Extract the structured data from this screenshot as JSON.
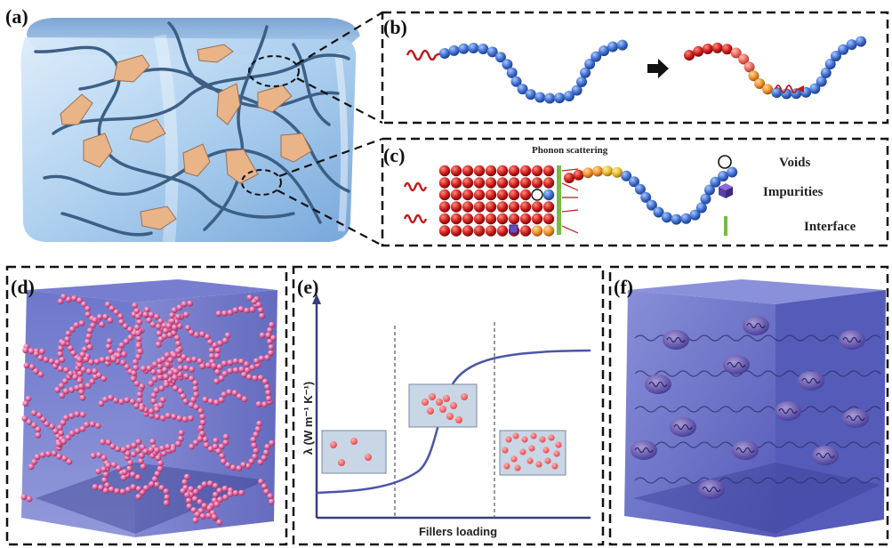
{
  "panels": {
    "a": {
      "label": "(a)"
    },
    "b": {
      "label": "(b)"
    },
    "c": {
      "label": "(c)",
      "annotation": "Phonon scattering",
      "legend": [
        {
          "text": "Voids",
          "icon": "void-circle-icon"
        },
        {
          "text": "Impurities",
          "icon": "impurity-cube-icon"
        },
        {
          "text": "Interface",
          "icon": "interface-bar-icon"
        }
      ]
    },
    "d": {
      "label": "(d)"
    },
    "e": {
      "label": "(e)",
      "ylabel": "λ (W m⁻¹ K⁻¹)",
      "xlabel": "Fillers loading"
    },
    "f": {
      "label": "(f)"
    }
  },
  "colors": {
    "chain_blue": "#3f6fd0",
    "phonon_red": "#c01818",
    "orange": "#f0902a",
    "interface_green": "#77bb44",
    "cube_blue": "#5a62c4",
    "filler_pink": "#e0609a",
    "platelet": "#e8b488",
    "curve": "#4a55a8",
    "dash": "#222222"
  }
}
